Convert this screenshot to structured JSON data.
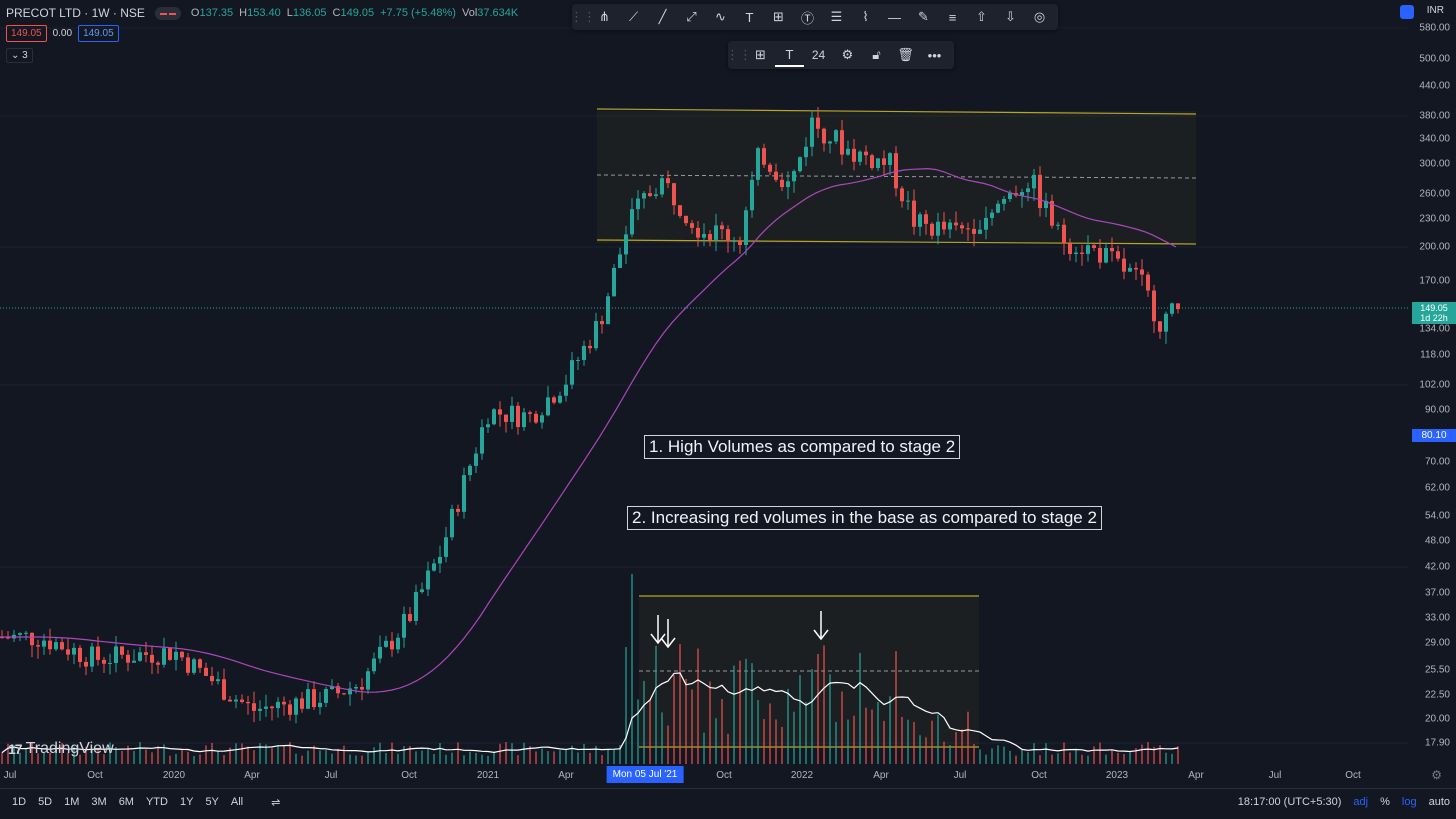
{
  "header": {
    "symbol": "PRECOT LTD · 1W · NSE",
    "o_label": "O",
    "o_value": "137.35",
    "h_label": "H",
    "h_value": "153.40",
    "l_label": "L",
    "l_value": "136.05",
    "c_label": "C",
    "c_value": "149.05",
    "change": "+7.75 (+5.48%)",
    "vol_label": "Vol",
    "vol_value": "37.634K",
    "sell_price": "149.05",
    "spread": "0.00",
    "buy_price": "149.05",
    "indicators_count": "3"
  },
  "drawing_toolbar": {
    "tools": [
      "pitchfork-icon",
      "trend-line-icon",
      "ray-icon",
      "extended-line-icon",
      "curve-icon",
      "text-tool-icon",
      "grid-icon",
      "text-note-icon",
      "fib-icon",
      "path-icon",
      "horizontal-line-icon",
      "brush-icon",
      "multi-lines-icon",
      "arrow-up-icon",
      "arrow-down-icon",
      "target-icon"
    ]
  },
  "text_toolbar": {
    "font_size": "24"
  },
  "annotations": [
    {
      "text": "1. High Volumes as compared to stage 2"
    },
    {
      "text": "2. Increasing red volumes in the base as compared to stage 2"
    }
  ],
  "price_axis": {
    "currency": "INR",
    "ticks": [
      "580.00",
      "500.00",
      "440.00",
      "380.00",
      "340.00",
      "300.00",
      "260.00",
      "230.00",
      "200.00",
      "170.00",
      "134.00",
      "118.00",
      "102.00",
      "90.00",
      "70.00",
      "62.00",
      "54.00",
      "48.00",
      "42.00",
      "37.00",
      "33.00",
      "29.00",
      "25.50",
      "22.50",
      "20.00",
      "17.90"
    ],
    "current_price": "149.05",
    "countdown": "1d 22h",
    "ma_value": "80.10"
  },
  "time_axis": {
    "labels": [
      "Jul",
      "Oct",
      "2020",
      "Apr",
      "Jul",
      "Oct",
      "2021",
      "Apr",
      "Oct",
      "2022",
      "Apr",
      "Jul",
      "Oct",
      "2023",
      "Apr",
      "Jul",
      "Oct"
    ],
    "crosshair_label": "Mon 05 Jul '21"
  },
  "bottom_bar": {
    "ranges": [
      "1D",
      "5D",
      "1M",
      "3M",
      "6M",
      "YTD",
      "1Y",
      "5Y",
      "All"
    ],
    "time": "18:17:00 (UTC+5:30)",
    "adj": "adj",
    "pct": "%",
    "log": "log",
    "auto": "auto"
  },
  "brand": "TradingView",
  "colors": {
    "up": "#26a69a",
    "down": "#ef5350",
    "ma": "#ab47bc",
    "box": "#b5a52a",
    "accent": "#2962ff",
    "bg": "#131722"
  },
  "chart_data": {
    "type": "candlestick",
    "timeframe": "1W",
    "scale": "log",
    "close_series_approx": [
      {
        "x": "2019-07",
        "close": 30
      },
      {
        "x": "2019-10",
        "close": 27
      },
      {
        "x": "2020-01",
        "close": 28
      },
      {
        "x": "2020-04",
        "close": 21
      },
      {
        "x": "2020-07",
        "close": 24
      },
      {
        "x": "2020-10",
        "close": 33
      },
      {
        "x": "2021-01",
        "close": 90
      },
      {
        "x": "2021-04",
        "close": 120
      },
      {
        "x": "2021-06",
        "close": 230
      },
      {
        "x": "2021-10",
        "close": 300
      },
      {
        "x": "2022-01",
        "close": 340
      },
      {
        "x": "2022-04",
        "close": 230
      },
      {
        "x": "2022-07",
        "close": 220
      },
      {
        "x": "2022-10",
        "close": 200
      },
      {
        "x": "2023-01",
        "close": 170
      },
      {
        "x": "2023-03",
        "close": 149.05
      }
    ],
    "base_range": {
      "top": 380,
      "bottom": 200,
      "mid": 280
    },
    "moving_average": "30-week",
    "ma_last": 80.1
  }
}
